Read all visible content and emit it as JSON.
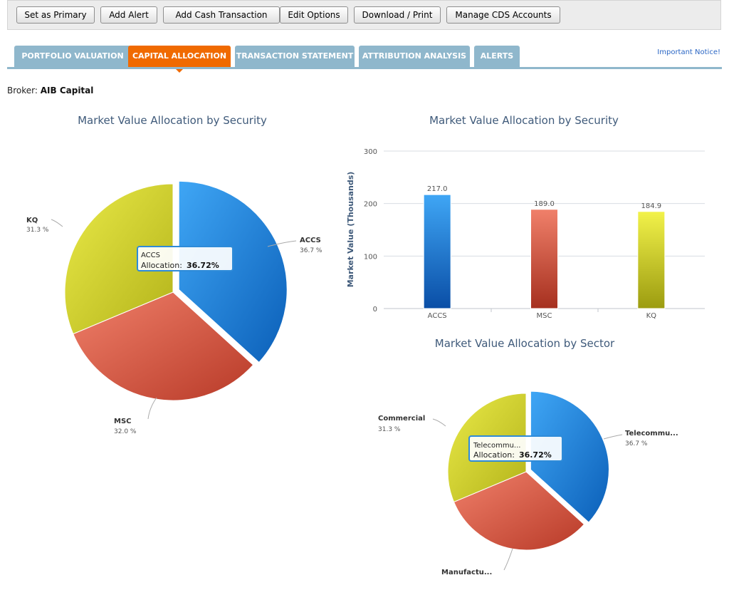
{
  "toolbar": {
    "set_primary": "Set as Primary",
    "add_alert": "Add Alert",
    "add_cash": "Add Cash Transaction",
    "edit_options": "Edit Options",
    "download_print": "Download / Print",
    "manage_cds": "Manage CDS Accounts"
  },
  "tabs": [
    "PORTFOLIO VALUATION",
    "CAPITAL ALLOCATION",
    "TRANSACTION STATEMENT",
    "ATTRIBUTION ANALYSIS",
    "ALERTS"
  ],
  "active_tab": "CAPITAL ALLOCATION",
  "notice_link": "Important Notice!",
  "broker": {
    "label": "Broker:",
    "name": "AIB Capital"
  },
  "colors": {
    "blue": "#1f7fde",
    "red": "#d9533f",
    "yellow": "#d4d42a",
    "accent": "#f06a00",
    "tab": "#8fb7cc"
  },
  "chart_data": [
    {
      "type": "pie",
      "title": "Market Value Allocation by Security",
      "slices": [
        {
          "label": "ACCS",
          "pct_label": "36.7 %",
          "value": 36.72
        },
        {
          "label": "MSC",
          "pct_label": "32.0 %",
          "value": 31.98
        },
        {
          "label": "KQ",
          "pct_label": "31.3 %",
          "value": 31.3
        }
      ],
      "tooltip": {
        "name": "ACCS",
        "label": "Allocation:",
        "value": "36.72%"
      }
    },
    {
      "type": "bar",
      "title": "Market Value Allocation by Security",
      "categories": [
        "ACCS",
        "MSC",
        "KQ"
      ],
      "values": [
        217.0,
        189.0,
        184.9
      ],
      "value_labels": [
        "217.0",
        "189.0",
        "184.9"
      ],
      "ylabel": "Market Value (Thousands)",
      "ylim": [
        0,
        300
      ],
      "yticks": [
        "0",
        "100",
        "200",
        "300"
      ],
      "grid": true
    },
    {
      "type": "pie",
      "title": "Market Value Allocation by Sector",
      "slices": [
        {
          "label": "Telecommu...",
          "pct_label": "36.7 %",
          "value": 36.72
        },
        {
          "label": "Manufactu...",
          "pct_label": "",
          "value": 31.98
        },
        {
          "label": "Commercial",
          "pct_label": "31.3 %",
          "value": 31.3
        }
      ],
      "tooltip": {
        "name": "Telecommu...",
        "label": "Allocation:",
        "value": "36.72%"
      }
    }
  ]
}
